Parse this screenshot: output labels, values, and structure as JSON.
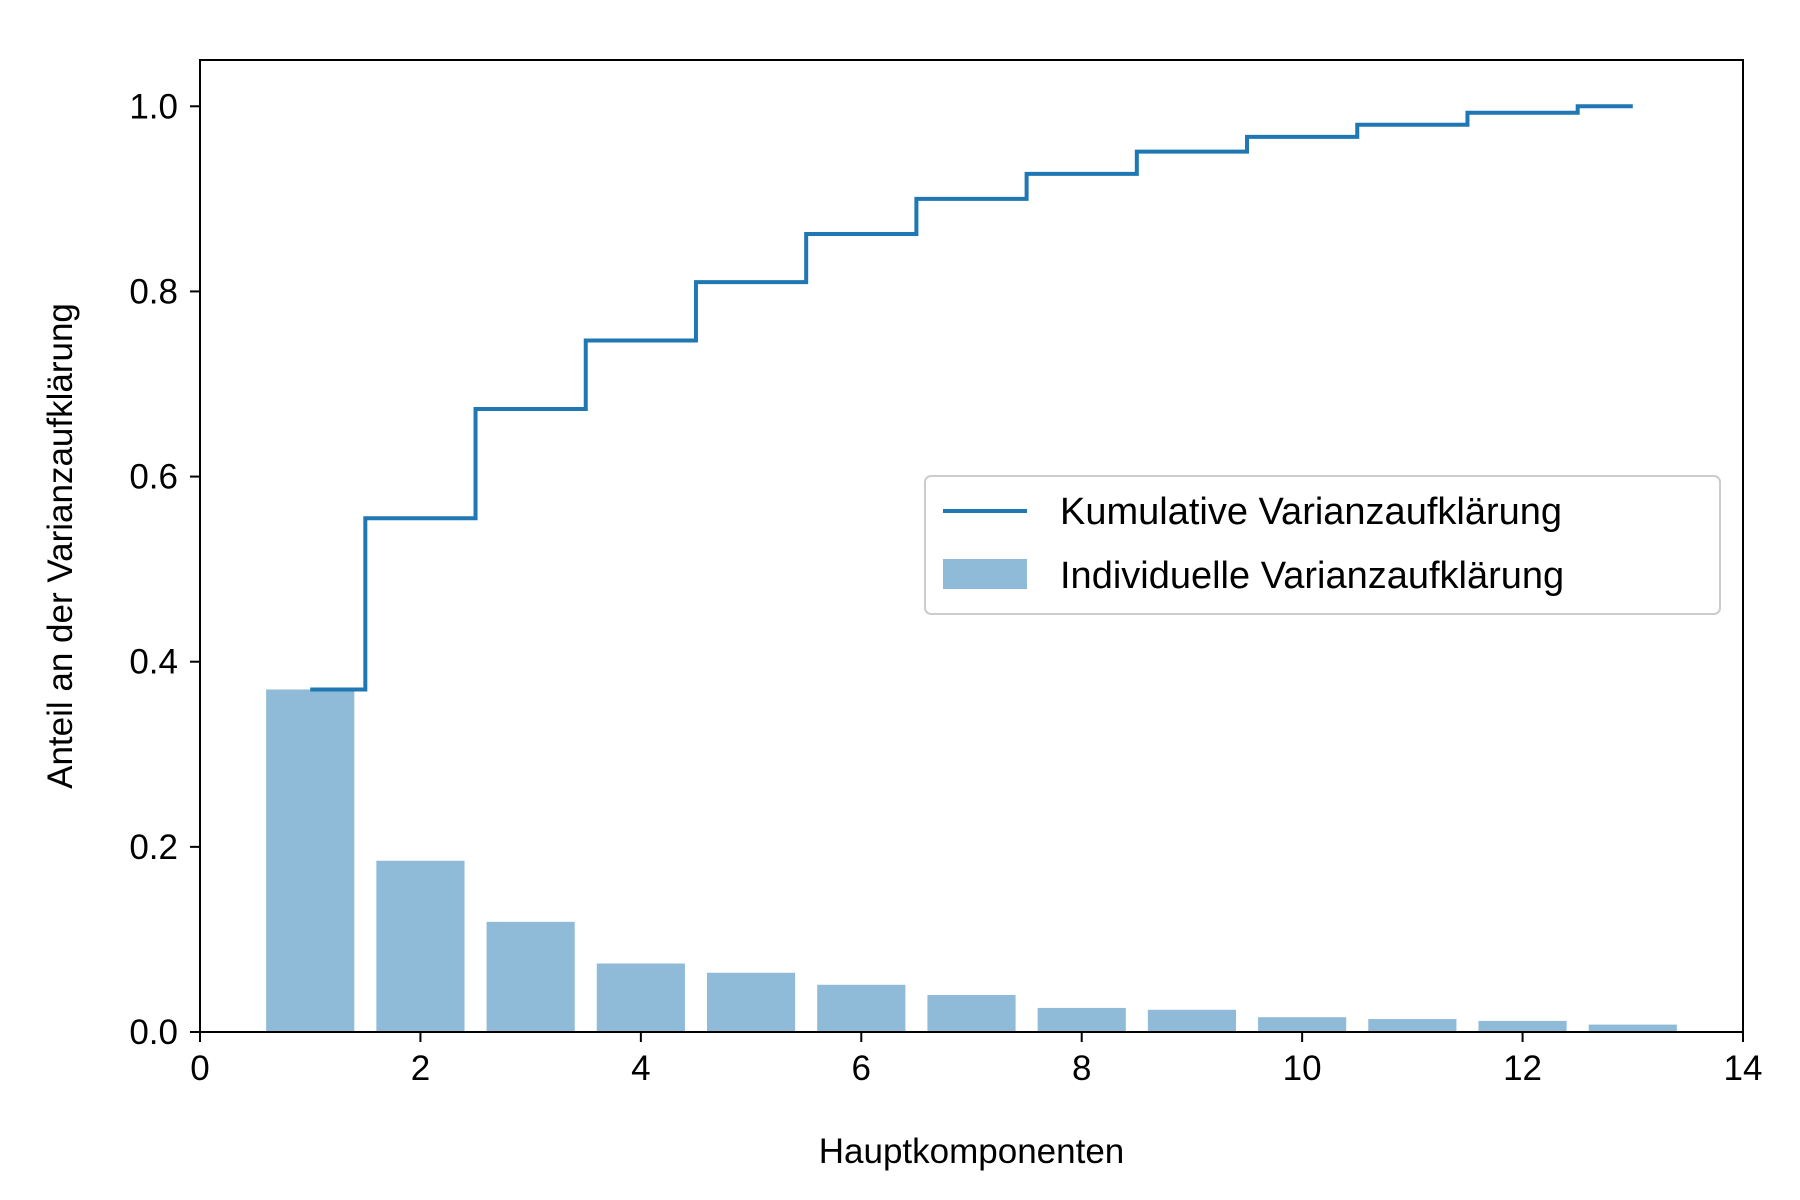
{
  "chart_data": {
    "type": "bar",
    "xlabel": "Hauptkomponenten",
    "ylabel": "Anteil an der Varianzaufklärung",
    "xlim": [
      0,
      14
    ],
    "ylim": [
      0,
      1.05
    ],
    "xticks": [
      0,
      2,
      4,
      6,
      8,
      10,
      12,
      14
    ],
    "yticks": [
      0.0,
      0.2,
      0.4,
      0.6,
      0.8,
      1.0
    ],
    "xtick_labels": [
      "0",
      "2",
      "4",
      "6",
      "8",
      "10",
      "12",
      "14"
    ],
    "ytick_labels": [
      "0.0",
      "0.2",
      "0.4",
      "0.6",
      "0.8",
      "1.0"
    ],
    "grid": false,
    "legend_position": "center-right",
    "x": [
      1,
      2,
      3,
      4,
      5,
      6,
      7,
      8,
      9,
      10,
      11,
      12,
      13
    ],
    "series": [
      {
        "name": "Kumulative Varianzaufklärung",
        "type": "step",
        "values": [
          0.37,
          0.555,
          0.673,
          0.747,
          0.81,
          0.862,
          0.9,
          0.927,
          0.951,
          0.967,
          0.98,
          0.993,
          1.0
        ],
        "color": "#1f77b4"
      },
      {
        "name": "Individuelle Varianzaufklärung",
        "type": "bar",
        "values": [
          0.37,
          0.185,
          0.119,
          0.074,
          0.064,
          0.051,
          0.04,
          0.026,
          0.024,
          0.016,
          0.014,
          0.012,
          0.008
        ],
        "color": "#1f77b4",
        "alpha": 0.5
      }
    ]
  }
}
